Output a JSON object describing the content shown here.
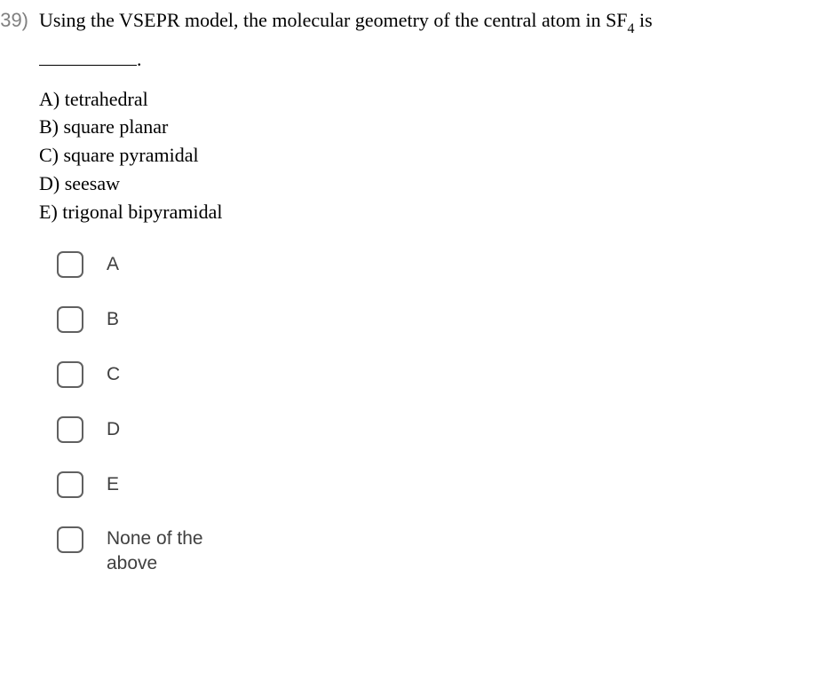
{
  "question": {
    "number": "39)",
    "text_part1": "Using the VSEPR model, the molecular geometry of the central atom in SF",
    "subscript": "4",
    "text_part2": " is",
    "blank_suffix": "."
  },
  "choices": {
    "a": "A) tetrahedral",
    "b": "B) square planar",
    "c": "C) square pyramidal",
    "d": "D) seesaw",
    "e": "E) trigonal bipyramidal"
  },
  "options": {
    "a": "A",
    "b": "B",
    "c": "C",
    "d": "D",
    "e": "E",
    "none": "None of the above"
  },
  "styling": {
    "number_color": "#808080",
    "text_color": "#000000",
    "option_label_color": "#404040",
    "checkbox_border_color": "#606060",
    "background_color": "#ffffff",
    "serif_font": "Georgia, 'Times New Roman', serif",
    "sans_font": "Arial, Helvetica, sans-serif",
    "question_fontsize": 22,
    "option_fontsize": 21,
    "checkbox_size": 30,
    "checkbox_radius": 7
  }
}
